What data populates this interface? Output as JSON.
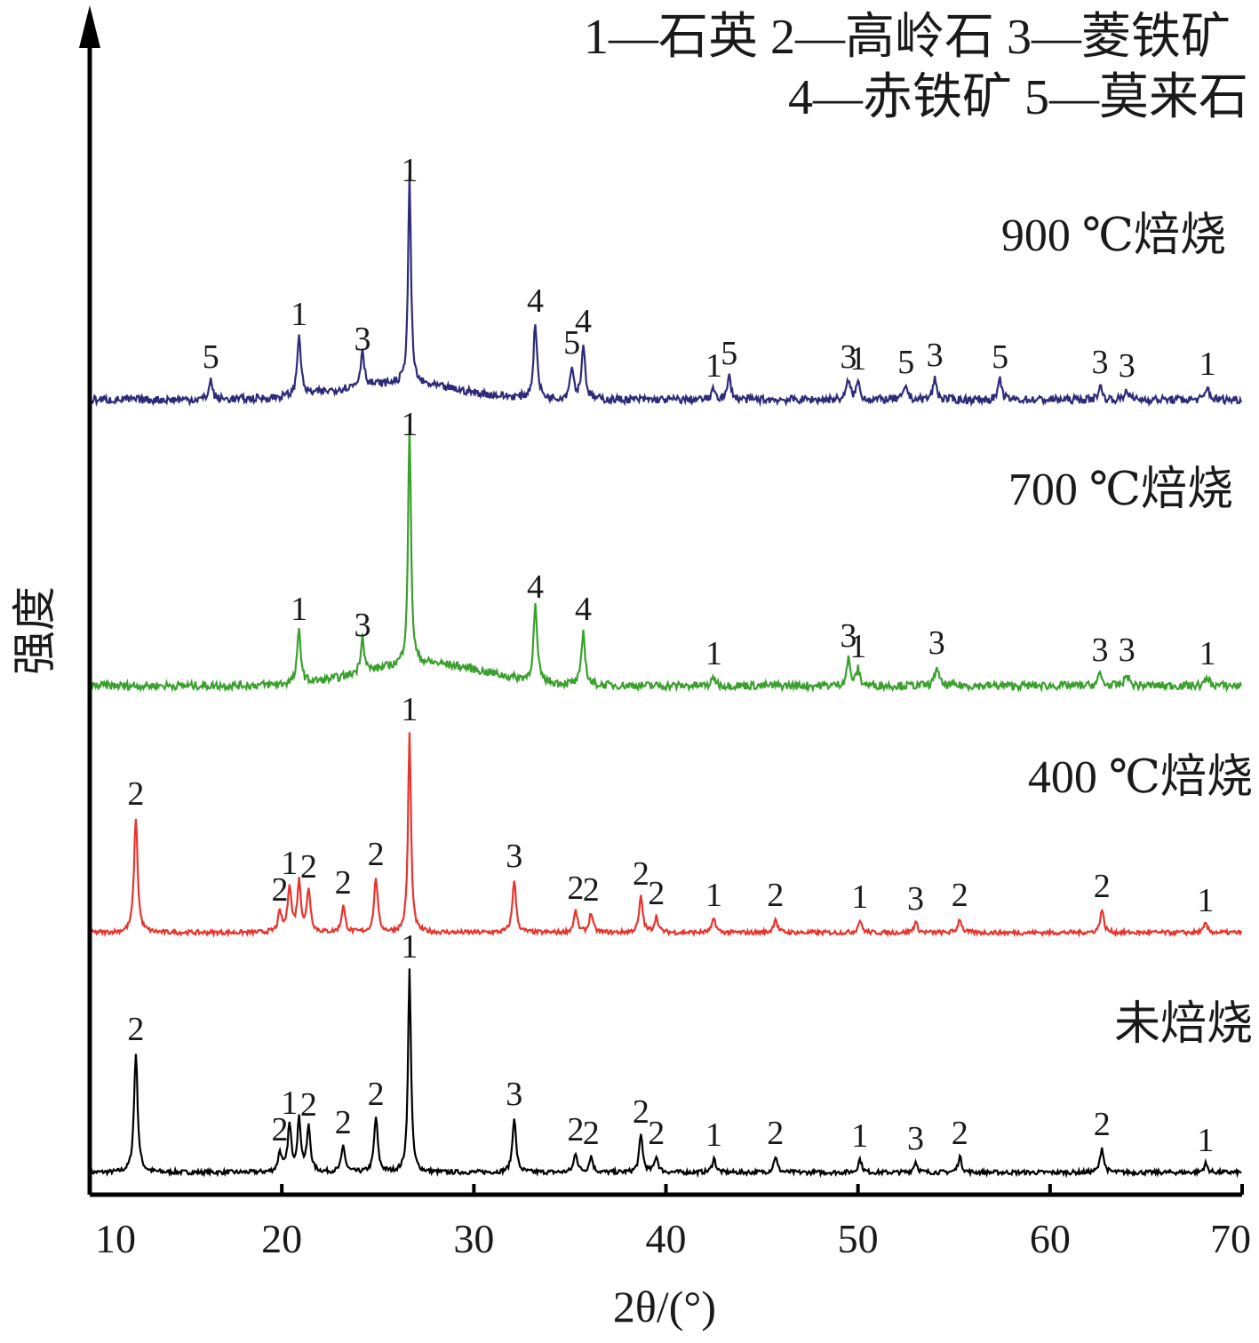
{
  "chart_data": {
    "type": "line",
    "title": "",
    "xlabel": "2θ/(°)",
    "ylabel": "强度",
    "xlim": [
      10,
      70
    ],
    "xticks": [
      10,
      20,
      30,
      40,
      50,
      60,
      70
    ],
    "grid": false,
    "legend": {
      "placement": "top-right",
      "lines": [
        "1—石英  2—高岭石  3—菱铁矿",
        "4—赤铁矿  5—莫来石"
      ]
    },
    "series": [
      {
        "name": "未焙烧",
        "color": "#000000",
        "baseline": 0.0,
        "peaks": [
          {
            "x": 12.4,
            "h": 135,
            "label": "2"
          },
          {
            "x": 19.9,
            "h": 22,
            "label": "2"
          },
          {
            "x": 20.4,
            "h": 52,
            "label": "1"
          },
          {
            "x": 20.9,
            "h": 58,
            "label": ""
          },
          {
            "x": 21.4,
            "h": 50,
            "label": "2"
          },
          {
            "x": 23.2,
            "h": 30,
            "label": "2"
          },
          {
            "x": 24.9,
            "h": 62,
            "label": "2"
          },
          {
            "x": 26.65,
            "h": 228,
            "label": "1"
          },
          {
            "x": 32.1,
            "h": 62,
            "label": "3"
          },
          {
            "x": 35.3,
            "h": 22,
            "label": "2"
          },
          {
            "x": 36.1,
            "h": 18,
            "label": "2"
          },
          {
            "x": 38.7,
            "h": 42,
            "label": "2"
          },
          {
            "x": 39.5,
            "h": 18,
            "label": "2"
          },
          {
            "x": 42.5,
            "h": 16,
            "label": "1"
          },
          {
            "x": 45.7,
            "h": 18,
            "label": "2"
          },
          {
            "x": 50.1,
            "h": 15,
            "label": "1"
          },
          {
            "x": 53.0,
            "h": 12,
            "label": "3"
          },
          {
            "x": 55.3,
            "h": 18,
            "label": "2"
          },
          {
            "x": 62.7,
            "h": 28,
            "label": "2"
          },
          {
            "x": 68.1,
            "h": 10,
            "label": "1"
          }
        ]
      },
      {
        "name": "400 ℃焙烧",
        "color": "#e8342d",
        "baseline": 270,
        "peaks": [
          {
            "x": 12.4,
            "h": 130,
            "label": "2"
          },
          {
            "x": 19.9,
            "h": 22,
            "label": "2"
          },
          {
            "x": 20.4,
            "h": 52,
            "label": "1"
          },
          {
            "x": 20.9,
            "h": 56,
            "label": ""
          },
          {
            "x": 21.4,
            "h": 48,
            "label": "2"
          },
          {
            "x": 23.2,
            "h": 30,
            "label": "2"
          },
          {
            "x": 24.9,
            "h": 62,
            "label": "2"
          },
          {
            "x": 26.65,
            "h": 225,
            "label": "1"
          },
          {
            "x": 32.1,
            "h": 60,
            "label": "3"
          },
          {
            "x": 35.3,
            "h": 24,
            "label": "2"
          },
          {
            "x": 36.1,
            "h": 22,
            "label": "2"
          },
          {
            "x": 38.7,
            "h": 40,
            "label": "2"
          },
          {
            "x": 39.5,
            "h": 18,
            "label": "2"
          },
          {
            "x": 42.5,
            "h": 16,
            "label": "1"
          },
          {
            "x": 45.7,
            "h": 16,
            "label": "2"
          },
          {
            "x": 50.1,
            "h": 14,
            "label": "1"
          },
          {
            "x": 53.0,
            "h": 12,
            "label": "3"
          },
          {
            "x": 55.3,
            "h": 16,
            "label": "2"
          },
          {
            "x": 62.7,
            "h": 26,
            "label": "2"
          },
          {
            "x": 68.1,
            "h": 10,
            "label": "1"
          }
        ]
      },
      {
        "name": "700 ℃焙烧",
        "color": "#3aa02d",
        "baseline": 548,
        "hump": {
          "center": 27.5,
          "width": 4.5,
          "height": 25
        },
        "peaks": [
          {
            "x": 20.9,
            "h": 60,
            "label": "1"
          },
          {
            "x": 24.2,
            "h": 42,
            "label": "3"
          },
          {
            "x": 26.65,
            "h": 268,
            "label": "1"
          },
          {
            "x": 33.2,
            "h": 85,
            "label": "4"
          },
          {
            "x": 35.7,
            "h": 60,
            "label": "4"
          },
          {
            "x": 42.5,
            "h": 10,
            "label": "1"
          },
          {
            "x": 49.5,
            "h": 30,
            "label": "3"
          },
          {
            "x": 50.0,
            "h": 18,
            "label": "1"
          },
          {
            "x": 54.1,
            "h": 22,
            "label": "3"
          },
          {
            "x": 62.6,
            "h": 14,
            "label": "3"
          },
          {
            "x": 64.0,
            "h": 14,
            "label": "3"
          },
          {
            "x": 68.2,
            "h": 10,
            "label": "1"
          }
        ]
      },
      {
        "name": "900 ℃焙烧",
        "color": "#2e2a7a",
        "baseline": 870,
        "hump": {
          "center": 26.0,
          "width": 4.5,
          "height": 18
        },
        "peaks": [
          {
            "x": 16.3,
            "h": 22,
            "label": "5"
          },
          {
            "x": 20.9,
            "h": 70,
            "label": "1"
          },
          {
            "x": 24.2,
            "h": 42,
            "label": "3"
          },
          {
            "x": 26.65,
            "h": 232,
            "label": "1"
          },
          {
            "x": 33.2,
            "h": 85,
            "label": "4"
          },
          {
            "x": 35.1,
            "h": 38,
            "label": "5"
          },
          {
            "x": 35.7,
            "h": 62,
            "label": "4"
          },
          {
            "x": 42.5,
            "h": 12,
            "label": "1"
          },
          {
            "x": 43.3,
            "h": 26,
            "label": "5"
          },
          {
            "x": 49.5,
            "h": 22,
            "label": "3"
          },
          {
            "x": 50.0,
            "h": 20,
            "label": "1"
          },
          {
            "x": 52.5,
            "h": 16,
            "label": "5"
          },
          {
            "x": 54.0,
            "h": 24,
            "label": "3"
          },
          {
            "x": 57.4,
            "h": 22,
            "label": "5"
          },
          {
            "x": 62.6,
            "h": 16,
            "label": "3"
          },
          {
            "x": 64.0,
            "h": 12,
            "label": "3"
          },
          {
            "x": 68.2,
            "h": 14,
            "label": "1"
          }
        ]
      }
    ]
  }
}
